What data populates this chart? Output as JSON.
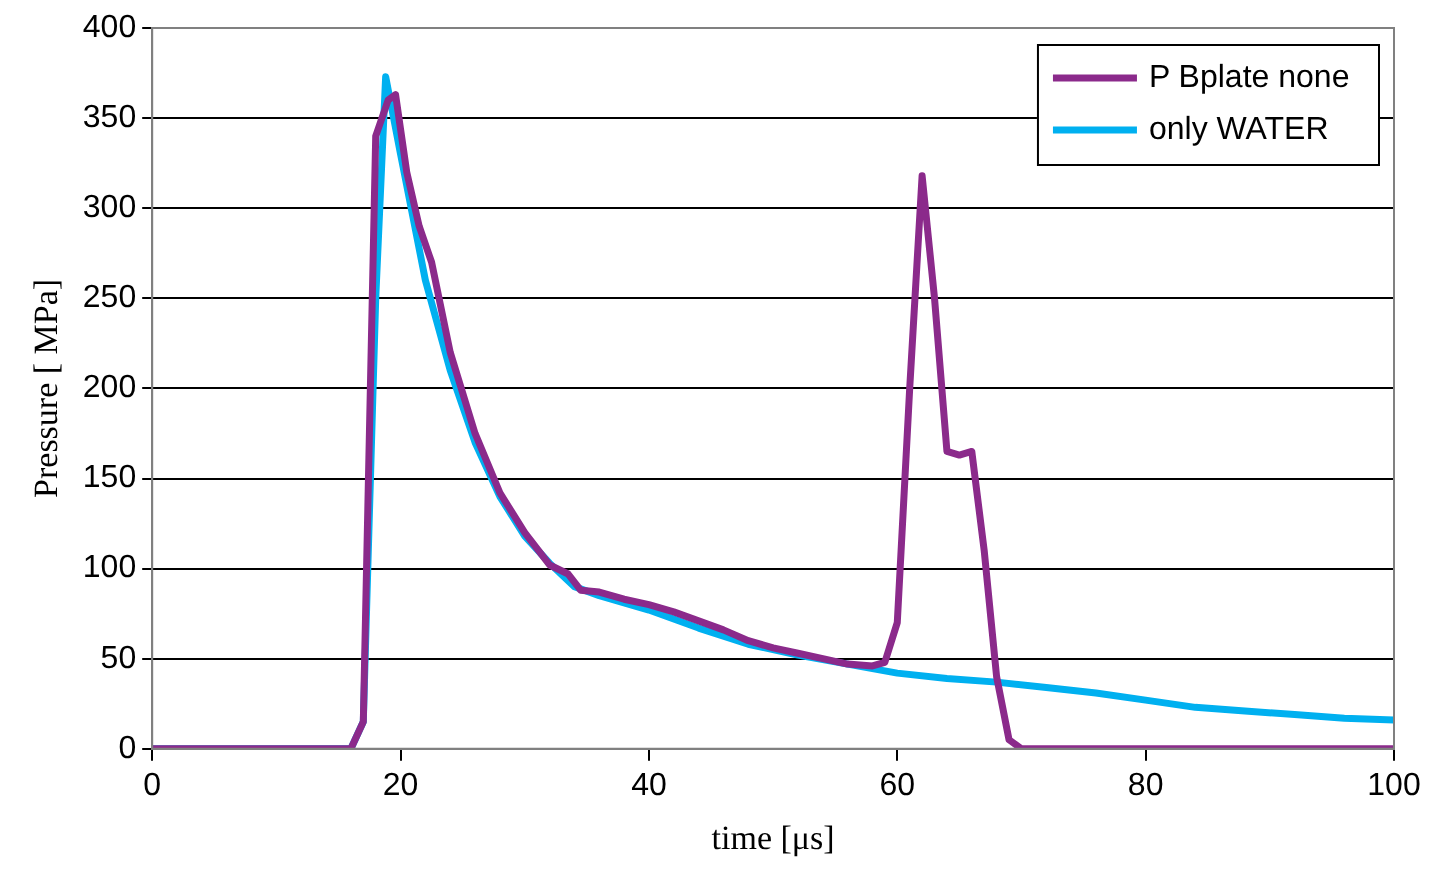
{
  "chart_data": {
    "type": "line",
    "xlabel": "time [μs]",
    "ylabel": "Pressure [ MPa]",
    "xlim": [
      0,
      100
    ],
    "xticks": [
      0,
      20,
      40,
      60,
      80,
      100
    ],
    "ylim": [
      0,
      400
    ],
    "yticks": [
      0,
      50,
      100,
      150,
      200,
      250,
      300,
      350,
      400
    ],
    "grid": "y",
    "legend": "top right",
    "marker": "none",
    "line_style": "solid",
    "series": [
      {
        "name": "P Bplate none",
        "color": "#8b2a8b",
        "x": [
          0,
          16,
          17,
          18,
          19,
          19.6,
          20.5,
          21.5,
          22.5,
          24,
          26,
          28,
          30,
          32,
          33.5,
          34.5,
          36,
          38,
          40,
          42,
          44,
          46,
          48,
          50,
          52,
          54,
          56,
          58,
          59,
          60,
          61,
          62,
          63,
          64,
          65,
          66,
          67,
          68,
          69,
          70,
          80,
          100
        ],
        "values": [
          0,
          0,
          15,
          340,
          360,
          363,
          320,
          290,
          270,
          220,
          175,
          142,
          120,
          102,
          97,
          88,
          87,
          83,
          80,
          76,
          71,
          66,
          60,
          56,
          53,
          50,
          47,
          46,
          48,
          70,
          200,
          318,
          250,
          165,
          163,
          165,
          110,
          40,
          5,
          0,
          0,
          0
        ]
      },
      {
        "name": "only WATER",
        "color": "#00b0f0",
        "x": [
          0,
          16,
          17,
          18,
          18.8,
          20,
          22,
          24,
          26,
          28,
          30,
          32,
          34,
          36,
          40,
          44,
          48,
          52,
          56,
          60,
          64,
          68,
          72,
          76,
          80,
          84,
          88,
          92,
          96,
          100
        ],
        "values": [
          0,
          0,
          15,
          250,
          373,
          330,
          260,
          210,
          170,
          140,
          118,
          103,
          90,
          85,
          77,
          67,
          58,
          52,
          47,
          42,
          39,
          37,
          34,
          31,
          27,
          23,
          21,
          19,
          17,
          16
        ]
      }
    ]
  }
}
